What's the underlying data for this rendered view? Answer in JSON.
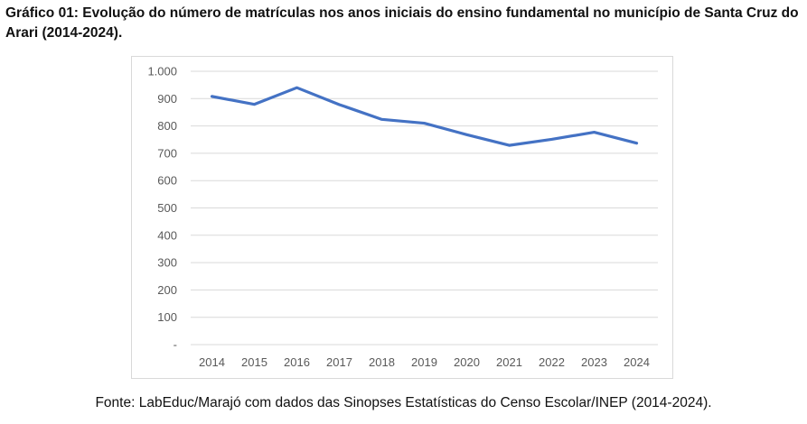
{
  "title": "Gráfico 01: Evolução do número de matrículas nos anos iniciais do ensino fundamental no município de Santa Cruz do Arari (2014-2024).",
  "source": "Fonte: LabEduc/Marajó com dados das Sinopses Estatísticas do Censo Escolar/INEP (2014-2024).",
  "chart_data": {
    "type": "line",
    "categories": [
      "2014",
      "2015",
      "2016",
      "2017",
      "2018",
      "2019",
      "2020",
      "2021",
      "2022",
      "2023",
      "2024"
    ],
    "series": [
      {
        "values": [
          908,
          879,
          940,
          878,
          824,
          810,
          768,
          729,
          751,
          777,
          737
        ],
        "color": "#4472C4"
      }
    ],
    "ylim": [
      0,
      1000
    ],
    "yticks": [
      0,
      100,
      200,
      300,
      400,
      500,
      600,
      700,
      800,
      900,
      1000
    ],
    "ytick_labels": [
      "-",
      "100",
      "200",
      "300",
      "400",
      "500",
      "600",
      "700",
      "800",
      "900",
      "1.000"
    ],
    "grid": true,
    "legend": "none"
  }
}
